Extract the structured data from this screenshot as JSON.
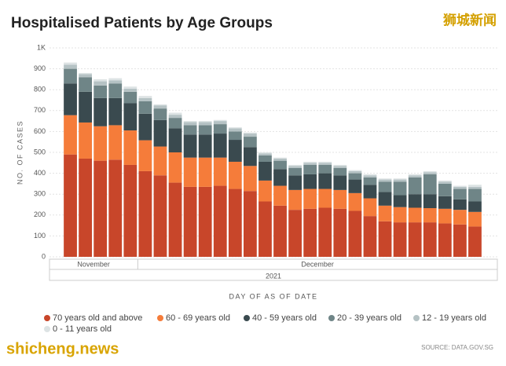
{
  "chart_data": {
    "type": "stacked_bar",
    "title": "Hospitalised Patients by Age Groups",
    "y_label": "NO. OF CASES",
    "x_label": "DAY OF AS OF DATE",
    "x_groups": [
      {
        "label": "November",
        "span": 5
      },
      {
        "label": "December",
        "span": 23
      }
    ],
    "year": "2021",
    "source": "SOURCE: DATA.GOV.SG",
    "ylim": [
      0,
      1000
    ],
    "yticks": [
      0,
      100,
      200,
      300,
      400,
      500,
      600,
      700,
      800,
      900,
      {
        "value": 1000,
        "label": "1K"
      }
    ],
    "grid": true,
    "categories": [
      null,
      null,
      null,
      null,
      null,
      null,
      null,
      null,
      null,
      null,
      null,
      null,
      null,
      null,
      null,
      null,
      null,
      null,
      null,
      null,
      null,
      null,
      null,
      null,
      null,
      null,
      null,
      null
    ],
    "series": [
      {
        "name": "70 years old and above",
        "color": "#c8462a",
        "values": [
          490,
          470,
          460,
          465,
          440,
          410,
          390,
          355,
          335,
          335,
          340,
          325,
          315,
          265,
          245,
          225,
          230,
          235,
          230,
          220,
          195,
          170,
          165,
          165,
          165,
          160,
          155,
          145
        ]
      },
      {
        "name": "60 - 69 years old",
        "color": "#f57c3a",
        "values": [
          188,
          173,
          165,
          165,
          165,
          148,
          138,
          145,
          140,
          140,
          135,
          130,
          120,
          100,
          95,
          95,
          95,
          90,
          90,
          85,
          85,
          75,
          73,
          70,
          68,
          70,
          70,
          70
        ]
      },
      {
        "name": "40 - 59 years old",
        "color": "#3a4a4f",
        "values": [
          152,
          147,
          135,
          130,
          130,
          127,
          127,
          115,
          110,
          110,
          115,
          105,
          90,
          90,
          80,
          70,
          70,
          75,
          70,
          65,
          65,
          65,
          57,
          65,
          67,
          60,
          50,
          50
        ]
      },
      {
        "name": "20 - 39 years old",
        "color": "#6f8587",
        "values": [
          70,
          70,
          60,
          70,
          55,
          60,
          55,
          50,
          45,
          45,
          45,
          40,
          50,
          30,
          40,
          35,
          45,
          40,
          35,
          30,
          35,
          50,
          65,
          80,
          95,
          60,
          50,
          60
        ]
      },
      {
        "name": "12 - 19 years old",
        "color": "#b5c2c4",
        "values": [
          20,
          15,
          20,
          15,
          15,
          15,
          15,
          15,
          15,
          15,
          15,
          15,
          15,
          10,
          10,
          10,
          10,
          10,
          10,
          10,
          10,
          10,
          10,
          10,
          10,
          10,
          10,
          10
        ]
      },
      {
        "name": "0 - 11 years old",
        "color": "#dde3e4",
        "values": [
          10,
          5,
          10,
          10,
          10,
          10,
          5,
          10,
          5,
          5,
          5,
          5,
          5,
          5,
          5,
          5,
          5,
          5,
          5,
          5,
          5,
          5,
          5,
          5,
          5,
          5,
          5,
          10
        ]
      }
    ]
  },
  "watermarks": {
    "top_right": "狮城新闻",
    "bottom_left": "shicheng.news"
  }
}
